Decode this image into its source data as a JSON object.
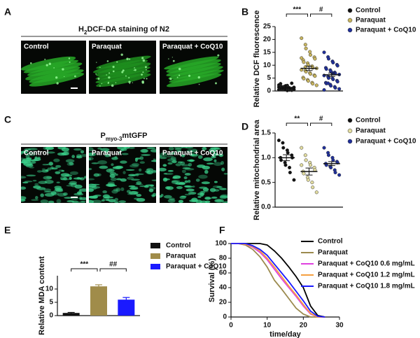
{
  "image_panels": [
    {
      "panel_label": "A",
      "title_parts": [
        "H",
        "2",
        "DCF-DA staining of N2"
      ],
      "labels": [
        "Control",
        "Paraquat",
        "Paraquat + CoQ10"
      ]
    },
    {
      "panel_label": "C",
      "title_parts": [
        "P",
        "myo-3",
        "mtGFP"
      ],
      "labels": [
        "Control",
        "Paraquat",
        "Paraquat + CoQ10"
      ]
    }
  ],
  "chart_data": [
    {
      "type": "dotplot",
      "panel_label": "B",
      "y_label": "Relative DCF fluorescence",
      "ylim": [
        0,
        25
      ],
      "yticks": [
        0,
        5,
        10,
        15,
        20,
        25
      ],
      "annotations": [
        "***",
        "#"
      ],
      "series": [
        {
          "name": "Control",
          "color": "#111111",
          "mean": 1.2,
          "sem": 0.15,
          "values": [
            0.5,
            1.2,
            0.8,
            2.1,
            1.5,
            0.3,
            1.0,
            2.8,
            0.6,
            1.8,
            1.1,
            0.4,
            0.9,
            1.4,
            2.3,
            0.7,
            1.6,
            0.2,
            1.3,
            3.0,
            0.8,
            1.0,
            1.7,
            0.5,
            2.0,
            1.2,
            0.9,
            0.6,
            1.5,
            1.1
          ]
        },
        {
          "name": "Paraquat",
          "color": "#c8b560",
          "mean": 8.8,
          "sem": 0.85,
          "values": [
            20.5,
            18.0,
            16.5,
            15.2,
            14.0,
            13.1,
            12.5,
            12.0,
            11.2,
            10.8,
            10.1,
            9.6,
            9.0,
            8.8,
            8.2,
            7.9,
            7.5,
            7.0,
            6.6,
            6.1,
            5.8,
            5.2,
            4.8,
            4.3,
            3.9,
            3.2,
            2.8,
            2.2,
            12.8,
            9.3
          ]
        },
        {
          "name": "Paraquat + CoQ10",
          "color": "#1f2f9a",
          "mean": 6.3,
          "sem": 0.65,
          "values": [
            15.0,
            13.2,
            12.5,
            11.5,
            11.0,
            10.2,
            9.8,
            9.0,
            8.5,
            8.1,
            7.6,
            7.2,
            6.8,
            6.4,
            6.0,
            5.6,
            5.2,
            4.9,
            4.5,
            4.0,
            3.6,
            3.2,
            2.9,
            2.5,
            2.0,
            1.6,
            1.2,
            0.8,
            0.4,
            3.0,
            5.0,
            7.0
          ]
        }
      ]
    },
    {
      "type": "dotplot",
      "panel_label": "D",
      "y_label": "Relative mitochondrial area",
      "ylim": [
        0,
        1.5
      ],
      "yticks": [
        {
          "value": 0,
          "label": "0.0"
        },
        {
          "value": 0.5,
          "label": "0.5"
        },
        {
          "value": 1,
          "label": "1.0"
        },
        {
          "value": 1.5,
          "label": "1.5"
        }
      ],
      "annotations": [
        "**",
        "#"
      ],
      "series": [
        {
          "name": "Control",
          "color": "#111111",
          "mean": 1.0,
          "sem": 0.06,
          "values": [
            1.35,
            1.3,
            1.2,
            1.15,
            1.1,
            1.05,
            1.0,
            1.0,
            0.95,
            0.9,
            0.85,
            0.8,
            0.7,
            0.55
          ]
        },
        {
          "name": "Paraquat",
          "color": "#e2dca0",
          "mean": 0.72,
          "sem": 0.07,
          "values": [
            1.2,
            1.05,
            0.95,
            0.9,
            0.85,
            0.8,
            0.75,
            0.72,
            0.68,
            0.6,
            0.55,
            0.5,
            0.4,
            0.3,
            0.85
          ]
        },
        {
          "name": "Paraquat + CoQ10",
          "color": "#1f2f9a",
          "mean": 0.88,
          "sem": 0.04,
          "values": [
            1.2,
            1.1,
            1.05,
            1.0,
            0.95,
            0.92,
            0.9,
            0.88,
            0.85,
            0.82,
            0.8,
            0.75,
            0.7,
            0.65
          ]
        }
      ]
    },
    {
      "type": "bar",
      "panel_label": "E",
      "y_label": "Relative MDA content",
      "ylim": [
        0,
        15
      ],
      "yticks": [
        0,
        5,
        10
      ],
      "annotations": [
        "***",
        "##"
      ],
      "categories": [
        "Control",
        "Paraquat",
        "Paraquat + CoQ10"
      ],
      "values": [
        1.0,
        11.0,
        6.0
      ],
      "errors": [
        0.2,
        0.6,
        0.8
      ],
      "colors": [
        "#111111",
        "#a08c4a",
        "#1a1aff"
      ]
    },
    {
      "type": "line",
      "panel_label": "F",
      "x_label": "time/day",
      "y_label": "Survival (%)",
      "xlim": [
        0,
        30
      ],
      "xticks": [
        0,
        10,
        20,
        30
      ],
      "ylim": [
        0,
        100
      ],
      "yticks": [
        0,
        20,
        40,
        60,
        80,
        100
      ],
      "x": [
        0,
        2,
        4,
        6,
        8,
        10,
        12,
        14,
        16,
        18,
        20,
        22,
        24,
        26
      ],
      "series": [
        {
          "name": "Control",
          "color": "#000000",
          "values": [
            100,
            100,
            100,
            100,
            100,
            98,
            90,
            80,
            68,
            55,
            40,
            15,
            2,
            0
          ]
        },
        {
          "name": "Paraquat",
          "color": "#9b8a4e",
          "values": [
            100,
            100,
            98,
            92,
            82,
            68,
            50,
            38,
            25,
            12,
            4,
            0,
            0,
            0
          ]
        },
        {
          "name": "Paraquat + CoQ10 0.6 mg/mL",
          "color": "#e040e0",
          "values": [
            100,
            100,
            99,
            95,
            88,
            78,
            65,
            52,
            40,
            28,
            15,
            4,
            0,
            0
          ]
        },
        {
          "name": "Paraquat + CoQ10 1.2 mg/mL",
          "color": "#f5a040",
          "values": [
            100,
            100,
            99,
            96,
            90,
            80,
            68,
            55,
            42,
            30,
            17,
            5,
            0,
            0
          ]
        },
        {
          "name": "Paraquat + CoQ10 1.8 mg/mL",
          "color": "#1a1aff",
          "values": [
            100,
            100,
            100,
            97,
            92,
            84,
            72,
            60,
            48,
            35,
            22,
            8,
            1,
            0
          ]
        }
      ]
    }
  ]
}
